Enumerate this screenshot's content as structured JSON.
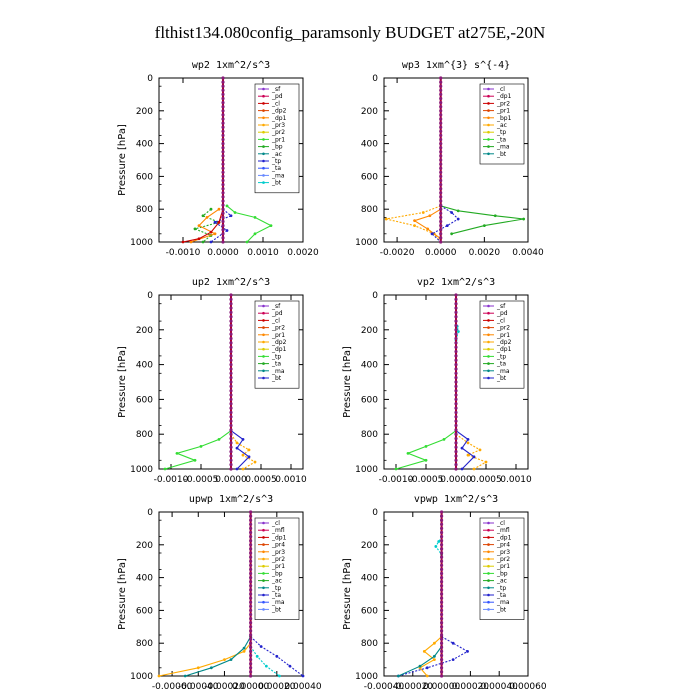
{
  "title": "flthist134.080config_paramsonly  BUDGET at275E,-20N",
  "chart_data": [
    {
      "type": "line",
      "title": "wp2   1xm^2/s^3",
      "ylabel": "Pressure [hPa]",
      "xlim": [
        -0.0016,
        0.002
      ],
      "ylim": [
        1000,
        0
      ],
      "xticks": [
        -0.001,
        0.0,
        0.001,
        0.002
      ],
      "xtick_labels": [
        "-0.0010",
        "0.0000",
        "0.0010",
        "0.0020"
      ],
      "yticks": [
        0,
        200,
        400,
        600,
        800,
        1000
      ],
      "legend": [
        "_sf",
        "_pd",
        "_cl",
        "_dp2",
        "_dp1",
        "_pr3",
        "_pr2",
        "_pr1",
        "_bp",
        "_ac",
        "_tp",
        "_ta",
        "_ma",
        "_bt"
      ],
      "series": [
        {
          "name": "_pr1",
          "color": "#33dd33",
          "x": [
            0.0001,
            0.0003,
            0.0008,
            0.0012,
            0.0008,
            0.0006
          ],
          "y": [
            780,
            820,
            850,
            900,
            950,
            1000
          ]
        },
        {
          "name": "_ac",
          "color": "#22aa22",
          "x": [
            -0.0003,
            -0.0005,
            -0.0001,
            -0.0007,
            -0.0003,
            -0.0005
          ],
          "y": [
            800,
            840,
            880,
            920,
            960,
            1000
          ]
        },
        {
          "name": "_pr2",
          "color": "#ff8800",
          "x": [
            -0.0001,
            -0.0004,
            -0.0006,
            -0.0002,
            -0.0008
          ],
          "y": [
            800,
            850,
            900,
            950,
            1000
          ]
        },
        {
          "name": "_tp",
          "color": "#2222cc",
          "x": [
            0.0,
            0.0002,
            -0.0002,
            0.0001,
            -0.0003
          ],
          "y": [
            800,
            840,
            880,
            930,
            1000
          ]
        },
        {
          "name": "_dp1",
          "color": "#cc0000",
          "x": [
            0.0,
            -0.0001,
            -0.0003,
            -0.0006,
            -0.001
          ],
          "y": [
            800,
            880,
            940,
            980,
            1000
          ]
        },
        {
          "name": "_bt",
          "color": "#00cccc",
          "x": [
            0.0,
            0.0,
            0.0,
            0.0
          ],
          "y": [
            0,
            600,
            900,
            1000
          ]
        },
        {
          "name": "_sf",
          "color": "#8833cc",
          "x": [
            0.0,
            0.0,
            0.0,
            0.0
          ],
          "y": [
            0,
            400,
            800,
            1000
          ]
        }
      ]
    },
    {
      "type": "line",
      "title": "wp3   1xm^{3} s^{-4}",
      "ylabel": "",
      "xlim": [
        -0.0026,
        0.004
      ],
      "ylim": [
        1000,
        0
      ],
      "xticks": [
        -0.002,
        0.0,
        0.002,
        0.004
      ],
      "xtick_labels": [
        "-0.0020",
        "0.0000",
        "0.0020",
        "0.0040"
      ],
      "yticks": [
        0,
        200,
        400,
        600,
        800,
        1000
      ],
      "legend": [
        "_cl",
        "_dp1",
        "_pr2",
        "_pr1",
        "_bp1",
        "_ac",
        "_tp",
        "_ta",
        "_ma",
        "_bt"
      ],
      "series": [
        {
          "name": "_ac",
          "color": "#22aa22",
          "x": [
            0.0,
            0.0008,
            0.0025,
            0.0038,
            0.002,
            0.0005
          ],
          "y": [
            780,
            810,
            840,
            860,
            900,
            950
          ]
        },
        {
          "name": "_pr2",
          "color": "#ffaa00",
          "x": [
            0.0,
            -0.0008,
            -0.0025,
            -0.0012,
            -0.0003,
            0.0
          ],
          "y": [
            780,
            820,
            860,
            900,
            950,
            1000
          ]
        },
        {
          "name": "_pr1",
          "color": "#ff8800",
          "x": [
            0.0,
            -0.0005,
            -0.0012,
            -0.0006,
            0.0
          ],
          "y": [
            800,
            840,
            870,
            920,
            980
          ]
        },
        {
          "name": "_tp",
          "color": "#2222cc",
          "x": [
            0.0,
            0.0005,
            0.0008,
            0.0003,
            -0.0004,
            0.0
          ],
          "y": [
            780,
            820,
            860,
            900,
            950,
            1000
          ]
        },
        {
          "name": "_cl",
          "color": "#cc0000",
          "x": [
            0.0,
            0.0,
            0.0,
            0.0
          ],
          "y": [
            0,
            400,
            800,
            1000
          ]
        }
      ]
    },
    {
      "type": "line",
      "title": "up2   1xm^2/s^3",
      "ylabel": "Pressure [hPa]",
      "xlim": [
        -0.0012,
        0.0012
      ],
      "ylim": [
        1000,
        0
      ],
      "xticks": [
        -0.001,
        -0.0005,
        0.0,
        0.0005,
        0.001
      ],
      "xtick_labels": [
        "-0.0010",
        "-0.0005",
        "0.0000",
        "0.0005",
        "0.0010"
      ],
      "yticks": [
        0,
        200,
        400,
        600,
        800,
        1000
      ],
      "legend": [
        "_sf",
        "_pd",
        "_cl",
        "_pr2",
        "_pr1",
        "_dp2",
        "_dp1",
        "_tp",
        "_ta",
        "_ma",
        "_bt"
      ],
      "series": [
        {
          "name": "_dp1",
          "color": "#33dd33",
          "x": [
            0.0,
            -0.0002,
            -0.0005,
            -0.0009,
            -0.0006,
            -0.0011
          ],
          "y": [
            780,
            830,
            870,
            910,
            950,
            1000
          ]
        },
        {
          "name": "_pr2",
          "color": "#ffaa00",
          "x": [
            0.0,
            0.0001,
            0.0003,
            0.0002,
            0.0004,
            0.0002
          ],
          "y": [
            800,
            850,
            890,
            920,
            960,
            1000
          ]
        },
        {
          "name": "_tp",
          "color": "#2222cc",
          "x": [
            0.0,
            0.0002,
            0.0001,
            0.0003,
            0.0001
          ],
          "y": [
            780,
            830,
            880,
            930,
            1000
          ]
        },
        {
          "name": "_sf",
          "color": "#cc0000",
          "x": [
            0.0,
            0.0,
            0.0,
            0.0
          ],
          "y": [
            0,
            400,
            800,
            1000
          ]
        }
      ]
    },
    {
      "type": "line",
      "title": "vp2   1xm^2/s^3",
      "ylabel": "Pressure [hPa]",
      "xlim": [
        -0.0012,
        0.0012
      ],
      "ylim": [
        1000,
        0
      ],
      "xticks": [
        -0.001,
        -0.0005,
        0.0,
        0.0005,
        0.001
      ],
      "xtick_labels": [
        "-0.0010",
        "-0.0005",
        "0.0000",
        "0.0005",
        "0.0010"
      ],
      "yticks": [
        0,
        200,
        400,
        600,
        800,
        1000
      ],
      "legend": [
        "_sf",
        "_pd",
        "_cl",
        "_pr2",
        "_pr1",
        "_dp2",
        "_dp1",
        "_tp",
        "_ta",
        "_ma",
        "_bt"
      ],
      "series": [
        {
          "name": "_dp1",
          "color": "#33dd33",
          "x": [
            0.0,
            -0.0002,
            -0.0005,
            -0.0008,
            -0.0005,
            -0.001
          ],
          "y": [
            780,
            830,
            870,
            910,
            950,
            1000
          ]
        },
        {
          "name": "_pr2",
          "color": "#ffaa00",
          "x": [
            0.0,
            0.0002,
            0.0004,
            0.0002,
            0.0005,
            0.0003
          ],
          "y": [
            800,
            850,
            890,
            920,
            960,
            1000
          ]
        },
        {
          "name": "_tp",
          "color": "#2222cc",
          "x": [
            0.0,
            0.0002,
            0.0001,
            0.0003,
            0.0001
          ],
          "y": [
            780,
            830,
            880,
            930,
            1000
          ]
        },
        {
          "name": "_bt",
          "color": "#00cccc",
          "x": [
            0.0,
            2e-05,
            4e-05,
            0.0
          ],
          "y": [
            150,
            180,
            210,
            260
          ]
        },
        {
          "name": "_sf",
          "color": "#cc0000",
          "x": [
            0.0,
            0.0,
            0.0,
            0.0
          ],
          "y": [
            0,
            400,
            800,
            1000
          ]
        }
      ]
    },
    {
      "type": "line",
      "title": "upwp   1xm^2/s^3",
      "ylabel": "Pressure [hPa]",
      "xlim": [
        -0.0007,
        0.0004
      ],
      "ylim": [
        1000,
        0
      ],
      "xticks": [
        -0.0006,
        -0.0004,
        -0.0002,
        0.0,
        0.0002,
        0.0004
      ],
      "xtick_labels": [
        "-0.00060",
        "-0.00040",
        "-0.00020",
        "0.00000",
        "0.00020",
        "0.00040"
      ],
      "yticks": [
        0,
        200,
        400,
        600,
        800,
        1000
      ],
      "legend": [
        "_cl",
        "_mfl",
        "_dp1",
        "_pr4",
        "_pr3",
        "_pr2",
        "_pr1",
        "_bp",
        "_ac",
        "_tp",
        "_ta",
        "_ma",
        "_bt"
      ],
      "series": [
        {
          "name": "_pr1",
          "color": "#ffaa00",
          "x": [
            0.0,
            0.0,
            -5e-05,
            -0.0002,
            -0.0004,
            -0.0007
          ],
          "y": [
            760,
            800,
            850,
            900,
            950,
            1000
          ]
        },
        {
          "name": "_tp",
          "color": "#2222cc",
          "x": [
            0.0,
            8e-05,
            0.0002,
            0.0003,
            0.0004
          ],
          "y": [
            760,
            820,
            880,
            940,
            1000
          ]
        },
        {
          "name": "_ac",
          "color": "#008888",
          "x": [
            0.0,
            -5e-05,
            -0.00015,
            -0.0003,
            -0.0005
          ],
          "y": [
            760,
            830,
            900,
            950,
            1000
          ]
        },
        {
          "name": "_bt",
          "color": "#00cccc",
          "x": [
            0.0,
            5e-05,
            0.00012,
            0.00022
          ],
          "y": [
            820,
            880,
            940,
            1000
          ]
        },
        {
          "name": "_cl",
          "color": "#8833cc",
          "x": [
            0.0,
            0.0,
            0.0,
            0.0
          ],
          "y": [
            0,
            400,
            800,
            1000
          ]
        }
      ]
    },
    {
      "type": "line",
      "title": "vpwp   1xm^2/s^3",
      "ylabel": "Pressure [hPa]",
      "xlim": [
        -0.0004,
        0.0006
      ],
      "ylim": [
        1000,
        0
      ],
      "xticks": [
        -0.0004,
        -0.0002,
        0.0,
        0.0002,
        0.0004,
        0.0006
      ],
      "xtick_labels": [
        "-0.00040",
        "-0.00020",
        "0.00000",
        "0.00020",
        "0.00040",
        "0.00060"
      ],
      "yticks": [
        0,
        200,
        400,
        600,
        800,
        1000
      ],
      "legend": [
        "_cl",
        "_mfl",
        "_dp1",
        "_pr4",
        "_pr3",
        "_pr2",
        "_pr1",
        "_bp",
        "_ac",
        "_tp",
        "_ta",
        "_ma",
        "_bt"
      ],
      "series": [
        {
          "name": "_pr1",
          "color": "#ffaa00",
          "x": [
            0.0,
            -5e-05,
            -0.00012,
            -5e-05,
            -0.00015,
            -0.0001
          ],
          "y": [
            760,
            800,
            850,
            900,
            950,
            1000
          ]
        },
        {
          "name": "_tp",
          "color": "#2222cc",
          "x": [
            0.0,
            8e-05,
            0.00018,
            8e-05,
            -0.0001,
            -0.0003
          ],
          "y": [
            760,
            800,
            850,
            900,
            950,
            1000
          ]
        },
        {
          "name": "_ac",
          "color": "#008888",
          "x": [
            0.0,
            -5e-05,
            -0.00015,
            -0.0003
          ],
          "y": [
            820,
            880,
            940,
            1000
          ]
        },
        {
          "name": "_bt",
          "color": "#00cccc",
          "x": [
            0.0,
            -2e-05,
            -4e-05,
            0.0
          ],
          "y": [
            150,
            180,
            210,
            260
          ]
        },
        {
          "name": "_cl",
          "color": "#8833cc",
          "x": [
            0.0,
            0.0,
            0.0,
            0.0
          ],
          "y": [
            0,
            400,
            800,
            1000
          ]
        }
      ]
    }
  ]
}
